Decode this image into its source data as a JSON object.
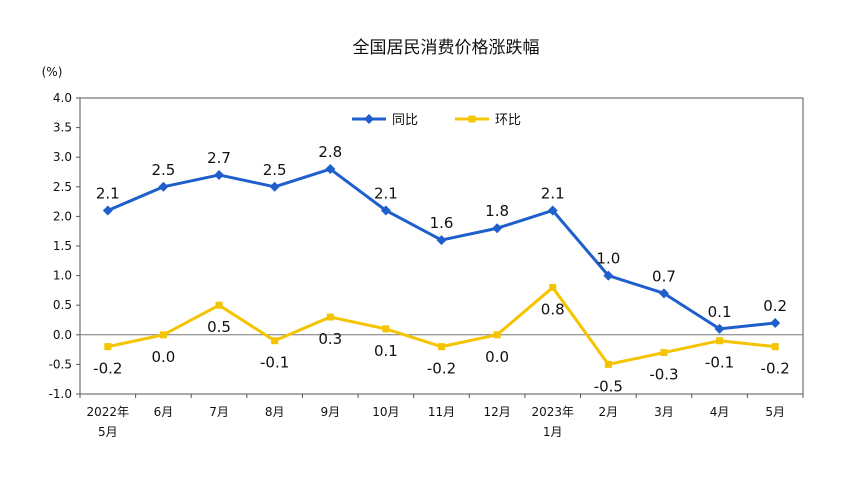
{
  "chart_data": {
    "type": "line",
    "title": "全国居民消费价格涨跌幅",
    "unit_label": "(%)",
    "ylim": [
      -1.0,
      4.0
    ],
    "yticks": [
      "4.0",
      "3.5",
      "3.0",
      "2.5",
      "2.0",
      "1.5",
      "1.0",
      "0.5",
      "0.0",
      "-0.5",
      "-1.0"
    ],
    "ytick_values": [
      4.0,
      3.5,
      3.0,
      2.5,
      2.0,
      1.5,
      1.0,
      0.5,
      0.0,
      -0.5,
      -1.0
    ],
    "categories": [
      [
        "2022年",
        "5月"
      ],
      [
        "6月"
      ],
      [
        "7月"
      ],
      [
        "8月"
      ],
      [
        "9月"
      ],
      [
        "10月"
      ],
      [
        "11月"
      ],
      [
        "12月"
      ],
      [
        "2023年",
        "1月"
      ],
      [
        "2月"
      ],
      [
        "3月"
      ],
      [
        "4月"
      ],
      [
        "5月"
      ]
    ],
    "legend_position": "top-center",
    "series": [
      {
        "name": "同比",
        "color": "#1F5FCC",
        "marker": "diamond",
        "values": [
          2.1,
          2.5,
          2.7,
          2.5,
          2.8,
          2.1,
          1.6,
          1.8,
          2.1,
          1.0,
          0.7,
          0.1,
          0.2
        ],
        "labels": [
          "2.1",
          "2.5",
          "2.7",
          "2.5",
          "2.8",
          "2.1",
          "1.6",
          "1.8",
          "2.1",
          "1.0",
          "0.7",
          "0.1",
          "0.2"
        ]
      },
      {
        "name": "环比",
        "color": "#F5C400",
        "marker": "square",
        "values": [
          -0.2,
          0.0,
          0.5,
          -0.1,
          0.3,
          0.1,
          -0.2,
          0.0,
          0.8,
          -0.5,
          -0.3,
          -0.1,
          -0.2
        ],
        "labels": [
          "-0.2",
          "0.0",
          "0.5",
          "-0.1",
          "0.3",
          "0.1",
          "-0.2",
          "0.0",
          "0.8",
          "-0.5",
          "-0.3",
          "-0.1",
          "-0.2"
        ]
      }
    ]
  }
}
